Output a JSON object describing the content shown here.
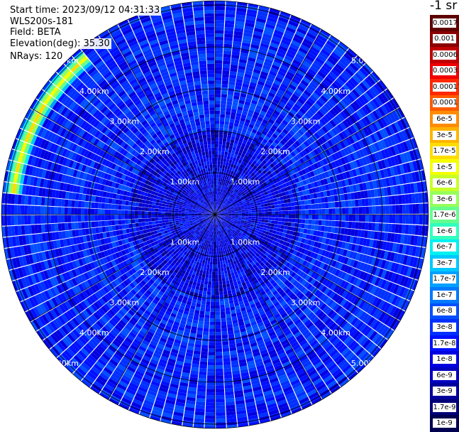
{
  "info": {
    "start_time": "Start time: 2023/09/12 04:31:33",
    "device": "WLS200s-181",
    "field": "Field: BETA",
    "elevation": "Elevation(deg): 35.30",
    "nrays": "NRays: 120"
  },
  "chart_data": {
    "type": "heatmap",
    "projection": "polar-ppi",
    "unit": "-1 sr",
    "n_rays": 120,
    "range_rings_km": [
      1,
      2,
      3,
      4,
      5
    ],
    "ring_labels": [
      "1.00km",
      "2.00km",
      "3.00km",
      "4.00km",
      "5.00km"
    ],
    "max_range_km": 5.1,
    "spokes_deg": [
      0,
      30,
      60,
      90,
      120,
      150,
      180,
      210,
      240,
      270,
      300,
      330
    ],
    "background_beta": 3e-08,
    "feature": {
      "description_value": 2e-05,
      "range_km": [
        4.6,
        5.0
      ],
      "azimuth_deg": [
        275,
        320
      ]
    },
    "colorbar": {
      "scale": "log",
      "ticks": [
        "0.0017",
        "0.001",
        "0.0006",
        "0.0003",
        "0.00017",
        "0.0001",
        "6e-5",
        "3e-5",
        "1.7e-5",
        "1e-5",
        "6e-6",
        "3e-6",
        "1.7e-6",
        "1e-6",
        "6e-7",
        "3e-7",
        "1.7e-7",
        "1e-7",
        "6e-8",
        "3e-8",
        "1.7e-8",
        "1e-8",
        "6e-9",
        "3e-9",
        "1.7e-9",
        "1e-9"
      ],
      "colors": [
        "#5e0000",
        "#8a0000",
        "#c00000",
        "#f00000",
        "#ff2800",
        "#ff5a00",
        "#ff8c00",
        "#ffb400",
        "#ffdc00",
        "#f5ff00",
        "#c8ff28",
        "#96ff5a",
        "#64ff8c",
        "#32ffbe",
        "#00f0f0",
        "#00c8ff",
        "#00a0ff",
        "#0078ff",
        "#0050ff",
        "#0030ff",
        "#0010ff",
        "#0000e0",
        "#0000c0",
        "#00009a",
        "#000078",
        "#000050"
      ]
    }
  }
}
